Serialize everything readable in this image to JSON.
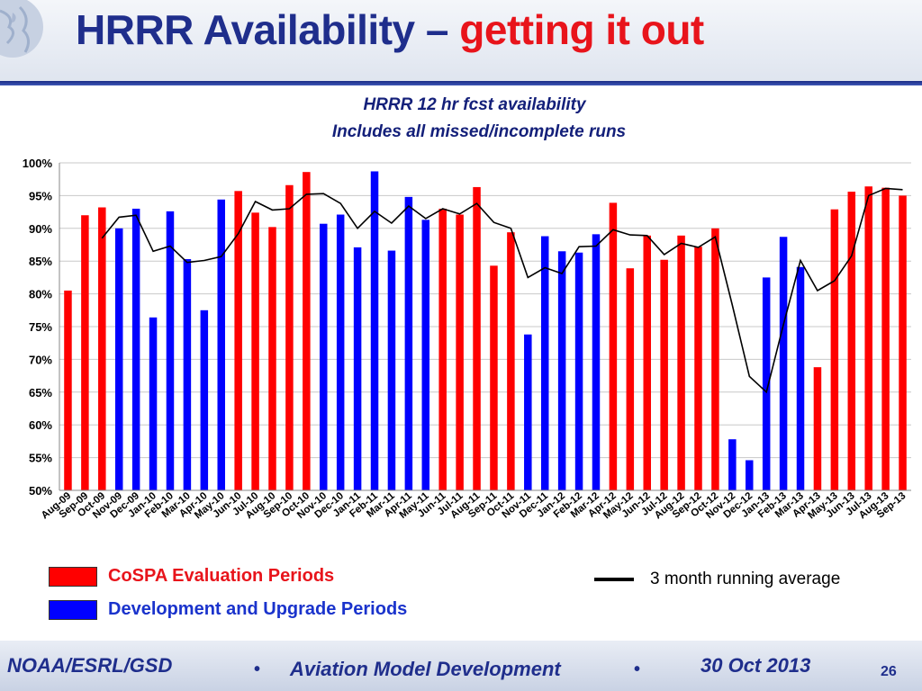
{
  "slide": {
    "title_main": "HRRR Availability – ",
    "title_accent": "getting it out",
    "colors": {
      "title": "#1f2e8c",
      "accent": "#e8141b",
      "cospa": "#ff0000",
      "dev": "#0000ff",
      "avg": "#000000"
    }
  },
  "chart_data": {
    "type": "bar",
    "title": "HRRR 12 hr fcst availability",
    "subtitle": "Includes all missed/incomplete runs",
    "xlabel": "",
    "ylabel": "",
    "ylim": [
      50,
      100
    ],
    "y_ticks": [
      "50%",
      "55%",
      "60%",
      "65%",
      "70%",
      "75%",
      "80%",
      "85%",
      "90%",
      "95%",
      "100%"
    ],
    "grid": true,
    "categories": [
      "Aug-09",
      "Sep-09",
      "Oct-09",
      "Nov-09",
      "Dec-09",
      "Jan-10",
      "Feb-10",
      "Mar-10",
      "Apr-10",
      "May-10",
      "Jun-10",
      "Jul-10",
      "Aug-10",
      "Sep-10",
      "Oct-10",
      "Nov-10",
      "Dec-10",
      "Jan-11",
      "Feb-11",
      "Mar-11",
      "Apr-11",
      "May-11",
      "Jun-11",
      "Jul-11",
      "Aug-11",
      "Sep-11",
      "Oct-11",
      "Nov-11",
      "Dec-11",
      "Jan-12",
      "Feb-12",
      "Mar-12",
      "Apr-12",
      "May-12",
      "Jun-12",
      "Jul-12",
      "Aug-12",
      "Sep-12",
      "Oct-12",
      "Nov-12",
      "Dec-12",
      "Jan-13",
      "Feb-13",
      "Mar-13",
      "Apr-13",
      "May-13",
      "Jun-13",
      "Jul-13",
      "Aug-13",
      "Sep-13"
    ],
    "values": [
      80.5,
      92.0,
      93.2,
      90.0,
      93.0,
      76.4,
      92.6,
      85.3,
      77.5,
      94.4,
      95.7,
      92.4,
      90.2,
      96.6,
      98.6,
      90.7,
      92.1,
      87.1,
      98.7,
      86.6,
      94.8,
      91.3,
      93.0,
      92.1,
      96.3,
      84.3,
      89.4,
      73.8,
      88.8,
      86.5,
      86.3,
      89.1,
      93.9,
      83.9,
      88.9,
      85.2,
      88.9,
      87.2,
      90.0,
      57.8,
      54.6,
      82.5,
      88.7,
      84.1,
      68.8,
      92.9,
      95.6,
      96.4,
      96.2,
      95.0
    ],
    "period": [
      "cospa",
      "cospa",
      "cospa",
      "dev",
      "dev",
      "dev",
      "dev",
      "dev",
      "dev",
      "dev",
      "cospa",
      "cospa",
      "cospa",
      "cospa",
      "cospa",
      "dev",
      "dev",
      "dev",
      "dev",
      "dev",
      "dev",
      "dev",
      "cospa",
      "cospa",
      "cospa",
      "cospa",
      "cospa",
      "dev",
      "dev",
      "dev",
      "dev",
      "dev",
      "cospa",
      "cospa",
      "cospa",
      "cospa",
      "cospa",
      "cospa",
      "cospa",
      "dev",
      "dev",
      "dev",
      "dev",
      "dev",
      "cospa",
      "cospa",
      "cospa",
      "cospa",
      "cospa",
      "cospa"
    ],
    "running_average": [
      null,
      null,
      88.5,
      91.7,
      92.0,
      86.5,
      87.3,
      84.8,
      85.1,
      85.7,
      89.2,
      94.1,
      92.8,
      93.0,
      95.2,
      95.3,
      93.8,
      90.0,
      92.6,
      90.8,
      93.4,
      91.5,
      93.0,
      92.2,
      93.8,
      90.9,
      90.0,
      82.5,
      84.0,
      83.1,
      87.2,
      87.3,
      89.8,
      89.0,
      88.9,
      86.0,
      87.7,
      87.1,
      88.7,
      78.3,
      67.4,
      65.0,
      75.3,
      85.1,
      80.5,
      82.0,
      85.8,
      95.0,
      96.1,
      95.9
    ],
    "legend": {
      "cospa_label": "CoSPA Evaluation Periods",
      "dev_label": "Development and Upgrade Periods",
      "avg_label": "3 month running average"
    }
  },
  "footer": {
    "org": "NOAA/ESRL/GSD",
    "program": "Aviation Model Development",
    "date": "30 Oct 2013",
    "page": "26",
    "bullet": "•"
  }
}
